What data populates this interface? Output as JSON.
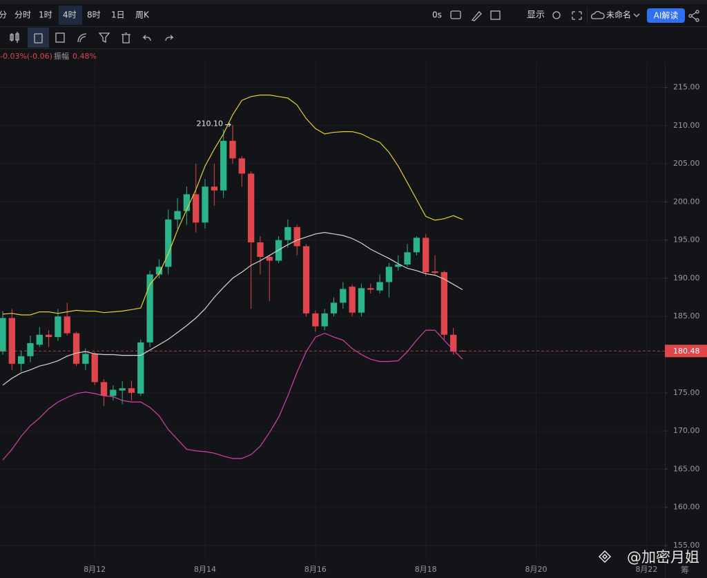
{
  "toolbar": {
    "intervals": [
      "分",
      "分时",
      "1时",
      "4时",
      "8时",
      "1日",
      "周K"
    ],
    "active_interval": 3,
    "timer": "0s",
    "display": "显示",
    "layout_name": "未命名",
    "ai_button": "AI解读"
  },
  "info": {
    "change": "-0.03%(-0.06)",
    "amplitude_label": "振幅",
    "amplitude": "0.48%"
  },
  "watermark": "@加密月姐",
  "corner_text": "筹",
  "chart_data": {
    "type": "candlestick",
    "up_color": "#2bb38a",
    "down_color": "#e0474c",
    "open": [
      180.4,
      184.8,
      178.8,
      179.8,
      181.3,
      182.6,
      182.3,
      185,
      182.8,
      178.8,
      180.1,
      176.4,
      174.6,
      175.3,
      175.6,
      174.9,
      181.6,
      190.5,
      191.5,
      197.7,
      198.8,
      201,
      197.3,
      202,
      201.5,
      208,
      205.7,
      203.7,
      194.7,
      192.8,
      192.3,
      195,
      196.7,
      194.2,
      185.4,
      183.7,
      185.4,
      186.8,
      188.9,
      185.5,
      188.7,
      188.4,
      189.5,
      191.5,
      191.8,
      193.4,
      195.3,
      190.9,
      190.8,
      182.6,
      180.5
    ],
    "high": [
      185.7,
      186,
      180.5,
      182.5,
      183.6,
      183.2,
      186,
      186.8,
      183,
      180.8,
      180.3,
      176.8,
      176,
      176.5,
      176.6,
      182,
      191,
      192.5,
      199,
      200.5,
      202,
      205,
      203,
      205,
      209.5,
      210.1,
      206,
      204,
      195.5,
      193,
      195.5,
      197.7,
      197,
      194.5,
      185.8,
      186,
      187.5,
      189.5,
      189.2,
      189.3,
      189.3,
      190.5,
      192,
      193,
      194.5,
      195.5,
      195.8,
      193,
      191,
      183.5,
      180.6
    ],
    "low": [
      180,
      178,
      177.8,
      179,
      181,
      181,
      181.8,
      182.5,
      178.5,
      178,
      176,
      173.3,
      174,
      173.5,
      174,
      174.6,
      181,
      190,
      190.5,
      196.5,
      197,
      196,
      196.5,
      199.5,
      200.5,
      205,
      202,
      186,
      190.5,
      187,
      192,
      194,
      193,
      185,
      183,
      183.2,
      185,
      186,
      185,
      185,
      188,
      188,
      187.5,
      191,
      191.5,
      193,
      190.3,
      190.5,
      182,
      180,
      180.4
    ],
    "close": [
      184.8,
      178.8,
      179.8,
      181.5,
      182.6,
      182.3,
      185,
      182.8,
      178.8,
      180.1,
      176.4,
      174.6,
      175.4,
      175.6,
      175,
      181.6,
      190.5,
      191.5,
      197.7,
      198.8,
      201,
      197.3,
      202,
      201.5,
      208,
      205.7,
      203.7,
      194.7,
      192.8,
      192.3,
      195,
      196.7,
      194.2,
      185.4,
      183.7,
      185.4,
      186.8,
      188.6,
      185.5,
      188.7,
      188.5,
      189.5,
      191.5,
      191.8,
      193.4,
      195.3,
      190.8,
      190.7,
      182.6,
      180.4,
      180.48
    ],
    "lines": [
      {
        "color": "#e8cf3a",
        "values": [
          185.3,
          185.4,
          185.2,
          185.2,
          185.6,
          185.6,
          185.4,
          185.6,
          185.8,
          185.7,
          185.7,
          185.5,
          185.6,
          185.7,
          185.9,
          186.1,
          189.2,
          190.6,
          193.2,
          196.3,
          199,
          201.6,
          204.7,
          206.9,
          208.9,
          211.4,
          213.3,
          213.8,
          214,
          214,
          213.8,
          213.6,
          212.7,
          210.9,
          209.6,
          208.9,
          209.1,
          209.2,
          209.2,
          208.9,
          208.3,
          207.8,
          206.5,
          204.7,
          202.5,
          200.3,
          198.1,
          197.6,
          197.8,
          198.2,
          197.7
        ]
      },
      {
        "color": "#d6d6d6",
        "values": [
          176,
          176.9,
          177.6,
          178,
          178.5,
          178.8,
          179.2,
          179.8,
          180.2,
          180.4,
          180.1,
          180,
          180,
          179.9,
          179.9,
          179.9,
          180.6,
          181.3,
          182,
          182.9,
          183.8,
          184.8,
          186,
          187.5,
          188.8,
          190,
          190.8,
          191.7,
          192.3,
          193,
          193.7,
          194.4,
          195,
          195.4,
          195.8,
          196,
          195.8,
          195.6,
          195.2,
          194.6,
          193.8,
          193.2,
          192.6,
          191.9,
          191.3,
          191,
          190.6,
          190.4,
          189.9,
          189.2,
          188.5
        ]
      },
      {
        "color": "#d93fae",
        "values": [
          166.2,
          167.6,
          169.3,
          170.7,
          171.7,
          172.9,
          173.8,
          174.4,
          174.9,
          175.1,
          174.9,
          174.6,
          174.5,
          174,
          173.8,
          173.8,
          173.1,
          172,
          170.2,
          168.9,
          167.6,
          167.4,
          167.3,
          167.1,
          166.7,
          166.4,
          166.4,
          166.9,
          168,
          169.8,
          171.8,
          174.6,
          177.7,
          180.4,
          182.3,
          182.8,
          182.3,
          181.9,
          180.8,
          180,
          179.4,
          179.1,
          179.1,
          179.2,
          180.4,
          181.9,
          183.2,
          183.2,
          181.9,
          180.6,
          179.4
        ]
      }
    ],
    "last_price": 180.48,
    "high_annotation": {
      "value": 210.1,
      "label": "210.10"
    },
    "xlim": [
      -0.3,
      72
    ],
    "xticks": [
      {
        "value": 10,
        "label": "8月12"
      },
      {
        "value": 22,
        "label": "8月14"
      },
      {
        "value": 34,
        "label": "8月16"
      },
      {
        "value": 46,
        "label": "8月18"
      },
      {
        "value": 58,
        "label": "8月20"
      },
      {
        "value": 70,
        "label": "8月22"
      }
    ],
    "ylim": [
      153.1,
      218.3
    ],
    "yticks": [
      {
        "value": 155,
        "label": "155.00"
      },
      {
        "value": 160,
        "label": "160.00"
      },
      {
        "value": 165,
        "label": "165.00"
      },
      {
        "value": 170,
        "label": "170.00"
      },
      {
        "value": 175,
        "label": "175.00"
      },
      {
        "value": 180,
        "label": "180.00"
      },
      {
        "value": 185,
        "label": "185.00"
      },
      {
        "value": 190,
        "label": "190.00"
      },
      {
        "value": 195,
        "label": "195.00"
      },
      {
        "value": 200,
        "label": "200.00"
      },
      {
        "value": 205,
        "label": "205.00"
      },
      {
        "value": 210,
        "label": "210.00"
      },
      {
        "value": 215,
        "label": "215.00"
      }
    ],
    "grid": true
  }
}
